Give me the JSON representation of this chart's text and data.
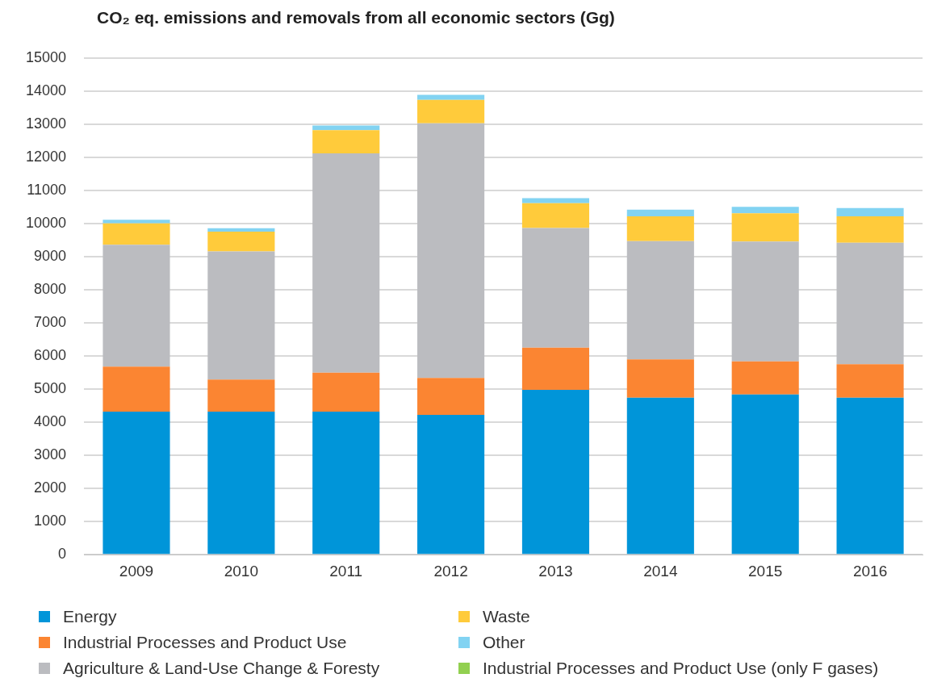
{
  "chart_data": {
    "type": "bar",
    "title": "CO₂ eq. emissions and removals from all economic sectors (Gg)",
    "stacked": true,
    "categories": [
      "2009",
      "2010",
      "2011",
      "2012",
      "2013",
      "2014",
      "2015",
      "2016"
    ],
    "series": [
      {
        "name": "Energy",
        "color": "#0095d9",
        "values": [
          4320,
          4320,
          4320,
          4220,
          4980,
          4740,
          4840,
          4740
        ]
      },
      {
        "name": "Industrial Processes and Product Use",
        "color": "#fb8532",
        "values": [
          1360,
          970,
          1175,
          1120,
          1270,
          1160,
          1000,
          1010
        ]
      },
      {
        "name": "Agriculture & Land-Use Change & Foresty",
        "color": "#bbbcc0",
        "values": [
          3680,
          3870,
          6630,
          7690,
          3620,
          3570,
          3620,
          3670
        ]
      },
      {
        "name": "Waste",
        "color": "#ffcb3b",
        "values": [
          650,
          600,
          700,
          710,
          750,
          750,
          850,
          800
        ]
      },
      {
        "name": "Other",
        "color": "#82d3f2",
        "values": [
          110,
          100,
          140,
          150,
          150,
          200,
          200,
          250
        ]
      },
      {
        "name": "Industrial Processes and Product Use (only F gases)",
        "color": "#92d050",
        "values": [
          0,
          0,
          0,
          0,
          0,
          0,
          0,
          0
        ]
      }
    ],
    "ylim": [
      0,
      15000
    ],
    "yticks": [
      0,
      1000,
      2000,
      3000,
      4000,
      5000,
      6000,
      7000,
      8000,
      9000,
      10000,
      11000,
      12000,
      13000,
      14000,
      15000
    ],
    "grid": "y",
    "legend": "bottom"
  }
}
